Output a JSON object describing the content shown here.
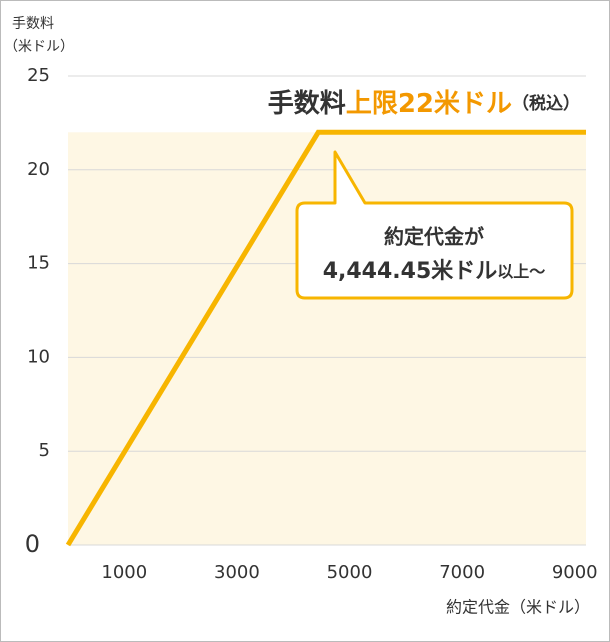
{
  "chart_data": {
    "type": "line",
    "title_parts": [
      "手数料",
      "上限22米ドル",
      "（税込）"
    ],
    "y_label": [
      "手数料",
      "（米ドル）"
    ],
    "x_label": "約定代金（米ドル）",
    "callout": {
      "line1": "約定代金が",
      "line2": [
        "4,444.45米ドル",
        "以上～"
      ]
    },
    "x": [
      0,
      4444.45,
      9200
    ],
    "series": [
      {
        "color": "#f7b500",
        "values": [
          0,
          22,
          22
        ]
      }
    ],
    "fill_color": "#fef7e4",
    "xlim": [
      0,
      9200
    ],
    "xticks": [
      1000,
      3000,
      5000,
      7000,
      9000
    ],
    "ylim": [
      0,
      25
    ],
    "yticks": [
      0,
      5,
      10,
      15,
      20,
      25
    ],
    "grid": true
  }
}
